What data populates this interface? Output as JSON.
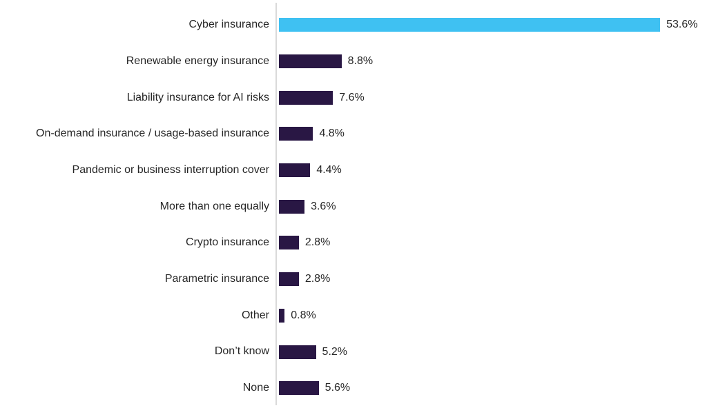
{
  "chart_data": {
    "type": "bar",
    "orientation": "horizontal",
    "title": "",
    "categories": [
      "Cyber insurance",
      "Renewable energy insurance",
      "Liability insurance for AI risks",
      "On-demand insurance / usage-based insurance",
      "Pandemic or business interruption cover",
      "More than one equally",
      "Crypto insurance",
      "Parametric insurance",
      "Other",
      "Don’t know",
      "None"
    ],
    "values": [
      53.6,
      8.8,
      7.6,
      4.8,
      4.4,
      3.6,
      2.8,
      2.8,
      0.8,
      5.2,
      5.6
    ],
    "value_labels": [
      "53.6%",
      "8.8%",
      "7.6%",
      "4.8%",
      "4.4%",
      "3.6%",
      "2.8%",
      "2.8%",
      "0.8%",
      "5.2%",
      "5.6%"
    ],
    "highlight_index": 0,
    "xlim": [
      0,
      55
    ],
    "grid": "off",
    "legend": "none",
    "colors": {
      "highlight_bar": "#3FC1F2",
      "default_bar": "#291744",
      "axis_line": "#D9D9D9",
      "label_text": "#262626"
    }
  }
}
